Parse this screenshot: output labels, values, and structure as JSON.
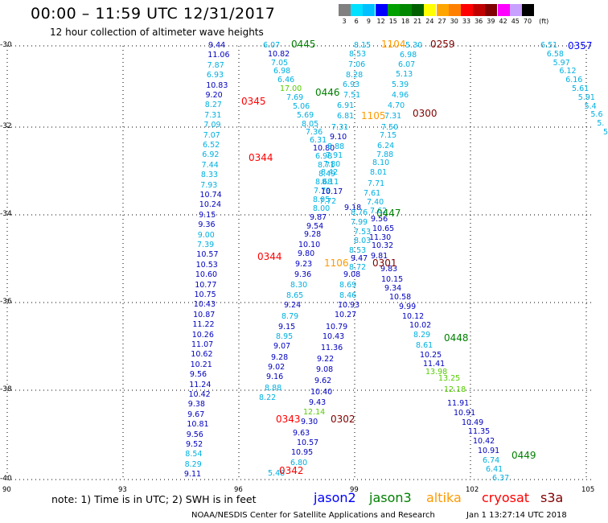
{
  "title": "00:00 – 11:59 UTC 12/31/2017",
  "subtitle": "12 hour collection of altimeter wave heights",
  "legend": {
    "labels": [
      "3",
      "6",
      "9",
      "12",
      "15",
      "18",
      "21",
      "24",
      "27",
      "30",
      "33",
      "36",
      "39",
      "42",
      "45",
      "70"
    ],
    "unit": "(ft)",
    "colors": [
      "#808080",
      "#00e0ff",
      "#00c0ff",
      "#0000ff",
      "#00a000",
      "#008800",
      "#006000",
      "#ffff00",
      "#ffa500",
      "#ff8000",
      "#ff0000",
      "#c00000",
      "#800000",
      "#ff00ff",
      "#c8a0ff",
      "#000000"
    ]
  },
  "axes": {
    "lat_ticks": [
      "-30",
      "-32",
      "-34",
      "-36",
      "-38",
      "-40"
    ],
    "lon_ticks": [
      "90",
      "93",
      "96",
      "99",
      "102",
      "105"
    ]
  },
  "measurements": [
    {
      "t": "9.44",
      "c": "#0000c0"
    },
    {
      "t": "11.06",
      "c": "#0000c0"
    },
    {
      "t": "7.87",
      "c": "#00b0e0"
    },
    {
      "t": "6.93",
      "c": "#00b0e0"
    },
    {
      "t": "10.83",
      "c": "#0000c0"
    },
    {
      "t": "9.20",
      "c": "#0000c0"
    },
    {
      "t": "8.27",
      "c": "#00b0e0"
    },
    {
      "t": "7.31",
      "c": "#00b0e0"
    },
    {
      "t": "7.09",
      "c": "#00b0e0"
    },
    {
      "t": "7.07",
      "c": "#00b0e0"
    },
    {
      "t": "6.52",
      "c": "#00b0e0"
    },
    {
      "t": "6.92",
      "c": "#00b0e0"
    },
    {
      "t": "7.44",
      "c": "#00b0e0"
    },
    {
      "t": "8.33",
      "c": "#00b0e0"
    },
    {
      "t": "7.93",
      "c": "#00b0e0"
    },
    {
      "t": "10.74",
      "c": "#0000c0"
    },
    {
      "t": "10.24",
      "c": "#0000c0"
    },
    {
      "t": "9.15",
      "c": "#0000c0"
    },
    {
      "t": "9.36",
      "c": "#0000c0"
    },
    {
      "t": "9.00",
      "c": "#00b0e0"
    },
    {
      "t": "7.39",
      "c": "#00b0e0"
    },
    {
      "t": "10.57",
      "c": "#0000c0"
    },
    {
      "t": "10.53",
      "c": "#0000c0"
    },
    {
      "t": "10.60",
      "c": "#0000c0"
    },
    {
      "t": "10.77",
      "c": "#0000c0"
    },
    {
      "t": "10.75",
      "c": "#0000c0"
    },
    {
      "t": "10.43",
      "c": "#0000c0"
    },
    {
      "t": "10.87",
      "c": "#0000c0"
    },
    {
      "t": "11.22",
      "c": "#0000c0"
    },
    {
      "t": "10.26",
      "c": "#0000c0"
    },
    {
      "t": "11.07",
      "c": "#0000c0"
    },
    {
      "t": "10.62",
      "c": "#0000c0"
    },
    {
      "t": "10.21",
      "c": "#0000c0"
    },
    {
      "t": "9.56",
      "c": "#0000c0"
    },
    {
      "t": "11.24",
      "c": "#0000c0"
    },
    {
      "t": "10.42",
      "c": "#0000c0"
    },
    {
      "t": "9.38",
      "c": "#0000c0"
    },
    {
      "t": "9.67",
      "c": "#0000c0"
    },
    {
      "t": "10.81",
      "c": "#0000c0"
    },
    {
      "t": "9.56",
      "c": "#0000c0"
    },
    {
      "t": "9.52",
      "c": "#0000c0"
    },
    {
      "t": "8.54",
      "c": "#00b0e0"
    },
    {
      "t": "8.29",
      "c": "#00b0e0"
    },
    {
      "t": "9.11",
      "c": "#0000c0"
    },
    {
      "t": "6.07",
      "c": "#00b0e0"
    },
    {
      "t": "10.82",
      "c": "#0000c0"
    },
    {
      "t": "7.05",
      "c": "#00b0e0"
    },
    {
      "t": "6.98",
      "c": "#00b0e0"
    },
    {
      "t": "6.46",
      "c": "#00b0e0"
    },
    {
      "t": "17.00",
      "c": "#55cc00"
    },
    {
      "t": "7.69",
      "c": "#00b0e0"
    },
    {
      "t": "5.06",
      "c": "#00b0e0"
    },
    {
      "t": "5.69",
      "c": "#00b0e0"
    },
    {
      "t": "8.05",
      "c": "#00b0e0"
    },
    {
      "t": "7.36",
      "c": "#00b0e0"
    },
    {
      "t": "6.31",
      "c": "#00b0e0"
    },
    {
      "t": "10.80",
      "c": "#0000c0"
    },
    {
      "t": "6.98",
      "c": "#00b0e0"
    },
    {
      "t": "8.71",
      "c": "#00b0e0"
    },
    {
      "t": "8.49",
      "c": "#00b0e0"
    },
    {
      "t": "8.68",
      "c": "#00b0e0"
    },
    {
      "t": "7.79",
      "c": "#00b0e0"
    },
    {
      "t": "8.05",
      "c": "#00b0e0"
    },
    {
      "t": "8.00",
      "c": "#00b0e0"
    },
    {
      "t": "9.87",
      "c": "#0000c0"
    },
    {
      "t": "9.54",
      "c": "#0000c0"
    },
    {
      "t": "9.28",
      "c": "#0000c0"
    },
    {
      "t": "10.10",
      "c": "#0000c0"
    },
    {
      "t": "9.80",
      "c": "#0000c0"
    },
    {
      "t": "9.23",
      "c": "#0000c0"
    },
    {
      "t": "9.36",
      "c": "#0000c0"
    },
    {
      "t": "8.30",
      "c": "#00b0e0"
    },
    {
      "t": "8.65",
      "c": "#00b0e0"
    },
    {
      "t": "9.24",
      "c": "#0000c0"
    },
    {
      "t": "8.79",
      "c": "#00b0e0"
    },
    {
      "t": "9.15",
      "c": "#0000c0"
    },
    {
      "t": "8.95",
      "c": "#00b0e0"
    },
    {
      "t": "9.07",
      "c": "#0000c0"
    },
    {
      "t": "9.28",
      "c": "#0000c0"
    },
    {
      "t": "9.02",
      "c": "#0000c0"
    },
    {
      "t": "9.16",
      "c": "#0000c0"
    },
    {
      "t": "8.88",
      "c": "#00b0e0"
    },
    {
      "t": "8.22",
      "c": "#00b0e0"
    },
    {
      "t": "8.15",
      "c": "#00b0e0"
    },
    {
      "t": "8.53",
      "c": "#00b0e0"
    },
    {
      "t": "7.06",
      "c": "#00b0e0"
    },
    {
      "t": "8.28",
      "c": "#00b0e0"
    },
    {
      "t": "6.93",
      "c": "#00b0e0"
    },
    {
      "t": "7.51",
      "c": "#00b0e0"
    },
    {
      "t": "6.91",
      "c": "#00b0e0"
    },
    {
      "t": "6.81",
      "c": "#00b0e0"
    },
    {
      "t": "7.31",
      "c": "#00b0e0"
    },
    {
      "t": "9.10",
      "c": "#0000c0"
    },
    {
      "t": "8.88",
      "c": "#00b0e0"
    },
    {
      "t": "7.91",
      "c": "#00b0e0"
    },
    {
      "t": "7.80",
      "c": "#00b0e0"
    },
    {
      "t": "8.42",
      "c": "#00b0e0"
    },
    {
      "t": "8.11",
      "c": "#00b0e0"
    },
    {
      "t": "10.17",
      "c": "#0000c0"
    },
    {
      "t": "7.72",
      "c": "#00b0e0"
    },
    {
      "t": "9.18",
      "c": "#0000c0"
    },
    {
      "t": "8.76",
      "c": "#00b0e0"
    },
    {
      "t": "7.99",
      "c": "#00b0e0"
    },
    {
      "t": "7.53",
      "c": "#00b0e0"
    },
    {
      "t": "8.03",
      "c": "#00b0e0"
    },
    {
      "t": "8.53",
      "c": "#00b0e0"
    },
    {
      "t": "9.47",
      "c": "#0000c0"
    },
    {
      "t": "8.72",
      "c": "#00b0e0"
    },
    {
      "t": "9.08",
      "c": "#0000c0"
    },
    {
      "t": "8.69",
      "c": "#00b0e0"
    },
    {
      "t": "8.46",
      "c": "#00b0e0"
    },
    {
      "t": "10.93",
      "c": "#0000c0"
    },
    {
      "t": "10.27",
      "c": "#0000c0"
    },
    {
      "t": "10.79",
      "c": "#0000c0"
    },
    {
      "t": "10.43",
      "c": "#0000c0"
    },
    {
      "t": "11.36",
      "c": "#0000c0"
    },
    {
      "t": "9.22",
      "c": "#0000c0"
    },
    {
      "t": "9.08",
      "c": "#0000c0"
    },
    {
      "t": "9.62",
      "c": "#0000c0"
    },
    {
      "t": "10.40",
      "c": "#0000c0"
    },
    {
      "t": "9.43",
      "c": "#0000c0"
    },
    {
      "t": "12.14",
      "c": "#55cc00"
    },
    {
      "t": "9.30",
      "c": "#0000c0"
    },
    {
      "t": "9.63",
      "c": "#0000c0"
    },
    {
      "t": "10.57",
      "c": "#0000c0"
    },
    {
      "t": "10.95",
      "c": "#0000c0"
    },
    {
      "t": "6.80",
      "c": "#00b0e0"
    },
    {
      "t": "5.48",
      "c": "#00b0e0"
    },
    {
      "t": "5.30",
      "c": "#00b0e0"
    },
    {
      "t": "6.98",
      "c": "#00b0e0"
    },
    {
      "t": "6.07",
      "c": "#00b0e0"
    },
    {
      "t": "5.13",
      "c": "#00b0e0"
    },
    {
      "t": "5.39",
      "c": "#00b0e0"
    },
    {
      "t": "4.96",
      "c": "#00b0e0"
    },
    {
      "t": "4.70",
      "c": "#00b0e0"
    },
    {
      "t": "7.31",
      "c": "#00b0e0"
    },
    {
      "t": "7.50",
      "c": "#00b0e0"
    },
    {
      "t": "7.15",
      "c": "#00b0e0"
    },
    {
      "t": "6.24",
      "c": "#00b0e0"
    },
    {
      "t": "7.88",
      "c": "#00b0e0"
    },
    {
      "t": "8.10",
      "c": "#00b0e0"
    },
    {
      "t": "8.01",
      "c": "#00b0e0"
    },
    {
      "t": "7.71",
      "c": "#00b0e0"
    },
    {
      "t": "7.61",
      "c": "#00b0e0"
    },
    {
      "t": "7.40",
      "c": "#00b0e0"
    },
    {
      "t": "7.62",
      "c": "#00b0e0"
    },
    {
      "t": "9.56",
      "c": "#0000c0"
    },
    {
      "t": "10.65",
      "c": "#0000c0"
    },
    {
      "t": "11.30",
      "c": "#0000c0"
    },
    {
      "t": "10.32",
      "c": "#0000c0"
    },
    {
      "t": "9.81",
      "c": "#0000c0"
    },
    {
      "t": "9.83",
      "c": "#0000c0"
    },
    {
      "t": "10.15",
      "c": "#0000c0"
    },
    {
      "t": "9.34",
      "c": "#0000c0"
    },
    {
      "t": "10.58",
      "c": "#0000c0"
    },
    {
      "t": "9.99",
      "c": "#0000c0"
    },
    {
      "t": "10.12",
      "c": "#0000c0"
    },
    {
      "t": "10.02",
      "c": "#0000c0"
    },
    {
      "t": "8.29",
      "c": "#00b0e0"
    },
    {
      "t": "8.61",
      "c": "#00b0e0"
    },
    {
      "t": "10.25",
      "c": "#0000c0"
    },
    {
      "t": "11.41",
      "c": "#0000c0"
    },
    {
      "t": "13.98",
      "c": "#55cc00"
    },
    {
      "t": "13.25",
      "c": "#55cc00"
    },
    {
      "t": "12.18",
      "c": "#55cc00"
    },
    {
      "t": "11.91",
      "c": "#0000c0"
    },
    {
      "t": "10.91",
      "c": "#0000c0"
    },
    {
      "t": "10.49",
      "c": "#0000c0"
    },
    {
      "t": "11.35",
      "c": "#0000c0"
    },
    {
      "t": "10.42",
      "c": "#0000c0"
    },
    {
      "t": "10.91",
      "c": "#0000c0"
    },
    {
      "t": "6.74",
      "c": "#00b0e0"
    },
    {
      "t": "6.41",
      "c": "#00b0e0"
    },
    {
      "t": "6.37",
      "c": "#00b0e0"
    },
    {
      "t": "6.51",
      "c": "#00b0e0"
    },
    {
      "t": "6.58",
      "c": "#00b0e0"
    },
    {
      "t": "5.97",
      "c": "#00b0e0"
    },
    {
      "t": "6.12",
      "c": "#00b0e0"
    },
    {
      "t": "6.16",
      "c": "#00b0e0"
    },
    {
      "t": "5.61",
      "c": "#00b0e0"
    },
    {
      "t": "5.91",
      "c": "#00b0e0"
    },
    {
      "t": "5.4",
      "c": "#00b0e0"
    },
    {
      "t": "5.6",
      "c": "#00b0e0"
    },
    {
      "t": "5.",
      "c": "#00b0e0"
    },
    {
      "t": "5",
      "c": "#00b0e0"
    }
  ],
  "overpass_times": [
    {
      "t": "0445",
      "c": "#008000"
    },
    {
      "t": "0446",
      "c": "#008000"
    },
    {
      "t": "0447",
      "c": "#008000"
    },
    {
      "t": "0448",
      "c": "#008000"
    },
    {
      "t": "0449",
      "c": "#008000"
    },
    {
      "t": "1104",
      "c": "#ff9900"
    },
    {
      "t": "1105",
      "c": "#ff9900"
    },
    {
      "t": "1106",
      "c": "#ff9900"
    },
    {
      "t": "0259",
      "c": "#800000"
    },
    {
      "t": "0300",
      "c": "#800000"
    },
    {
      "t": "0301",
      "c": "#800000"
    },
    {
      "t": "0302",
      "c": "#800000"
    },
    {
      "t": "0345",
      "c": "#ff0000"
    },
    {
      "t": "0344",
      "c": "#ff0000"
    },
    {
      "t": "0344",
      "c": "#ff0000"
    },
    {
      "t": "0343",
      "c": "#ff0000"
    },
    {
      "t": "0342",
      "c": "#ff0000"
    },
    {
      "t": "0357",
      "c": "#0000ff"
    }
  ],
  "note": "note: 1) Time is in UTC; 2) SWH is in feet",
  "satellites": [
    {
      "name": "jason2",
      "c": "#0000ff"
    },
    {
      "name": "jason3",
      "c": "#008000"
    },
    {
      "name": "altika",
      "c": "#ff9900"
    },
    {
      "name": "cryosat",
      "c": "#ff0000"
    },
    {
      "name": "s3a",
      "c": "#800000"
    }
  ],
  "footer": "NOAA/NESDIS Center for Satellite Applications and Research",
  "footer_time": "Jan  1 13:27:14 UTC 2018"
}
